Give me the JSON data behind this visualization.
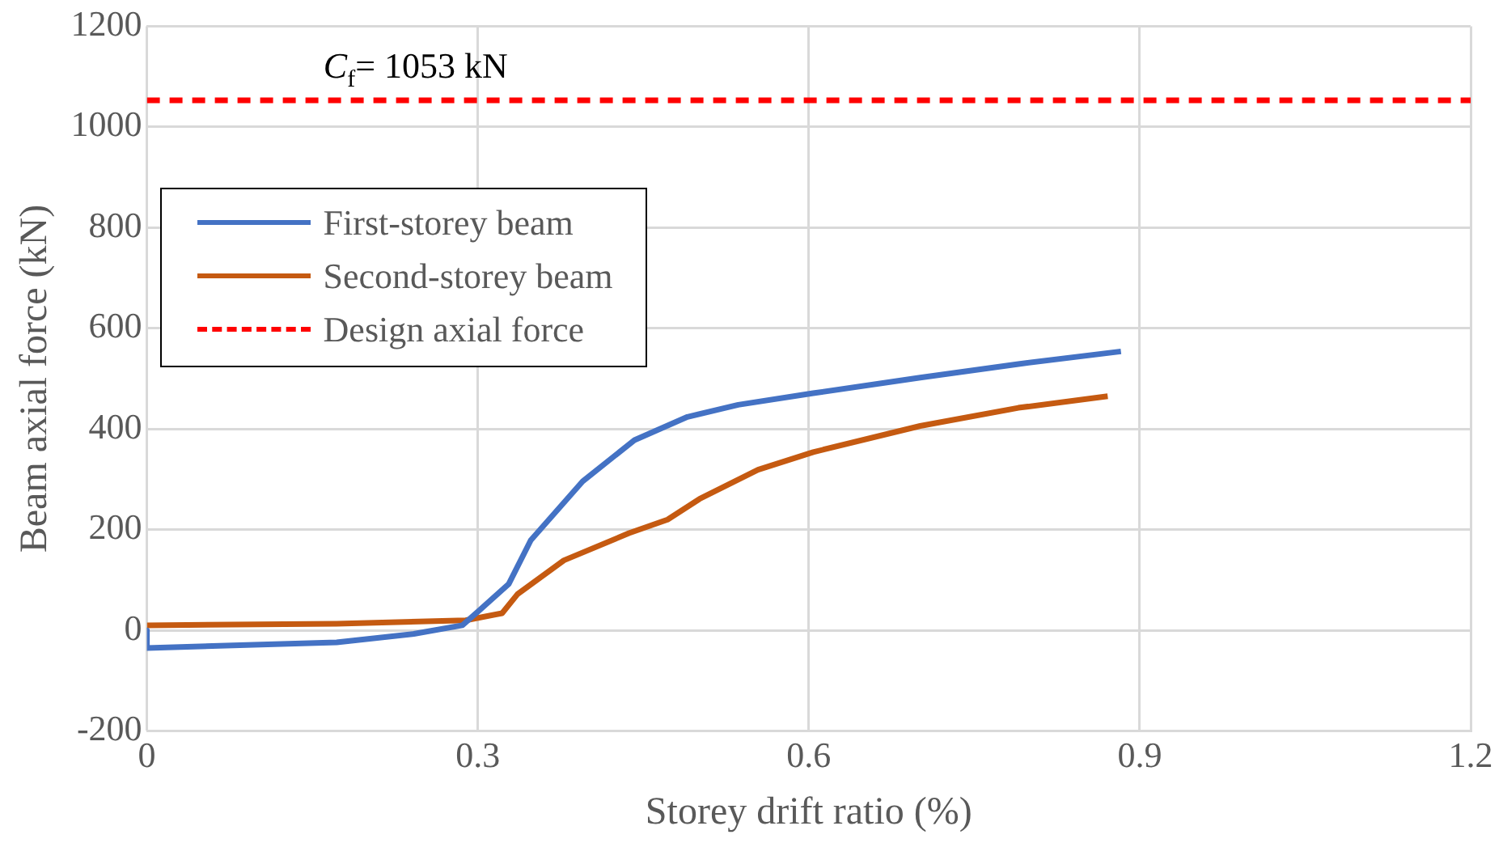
{
  "chart_data": {
    "type": "line",
    "xlabel": "Storey drift ratio (%)",
    "ylabel": "Beam axial force (kN)",
    "xlim": [
      0,
      1.2
    ],
    "xticks": [
      0,
      0.3,
      0.6,
      0.9,
      1.2
    ],
    "ylim": [
      -200,
      1200
    ],
    "yticks": [
      -200,
      0,
      200,
      400,
      600,
      800,
      1000,
      1200
    ],
    "grid": true,
    "legend": "top left",
    "marker": "none",
    "series": [
      {
        "name": "First-storey beam",
        "color": "#4472c4",
        "x": [
          0,
          0,
          0.172,
          0.242,
          0.286,
          0.301,
          0.328,
          0.348,
          0.395,
          0.442,
          0.49,
          0.536,
          0.604,
          0.701,
          0.79,
          0.883
        ],
        "values": [
          0,
          -35,
          -24,
          -7,
          10,
          39,
          92,
          179,
          296,
          378,
          424,
          448,
          471,
          502,
          529,
          554
        ]
      },
      {
        "name": "Second-storey beam",
        "color": "#c55a11",
        "x": [
          0,
          0.172,
          0.289,
          0.322,
          0.336,
          0.378,
          0.437,
          0.472,
          0.501,
          0.554,
          0.604,
          0.701,
          0.79,
          0.871
        ],
        "values": [
          10,
          13,
          20,
          34,
          72,
          139,
          193,
          220,
          261,
          319,
          354,
          406,
          442,
          465
        ]
      },
      {
        "name": "Design axial force",
        "color": "#ff0000",
        "line_style": "dashed",
        "x": [
          0,
          1.2
        ],
        "values": [
          1053,
          1053
        ]
      }
    ],
    "annotations": [
      {
        "text": "C$_{f}$= 1053 kN",
        "x": 0.16,
        "y": 1053
      }
    ]
  }
}
